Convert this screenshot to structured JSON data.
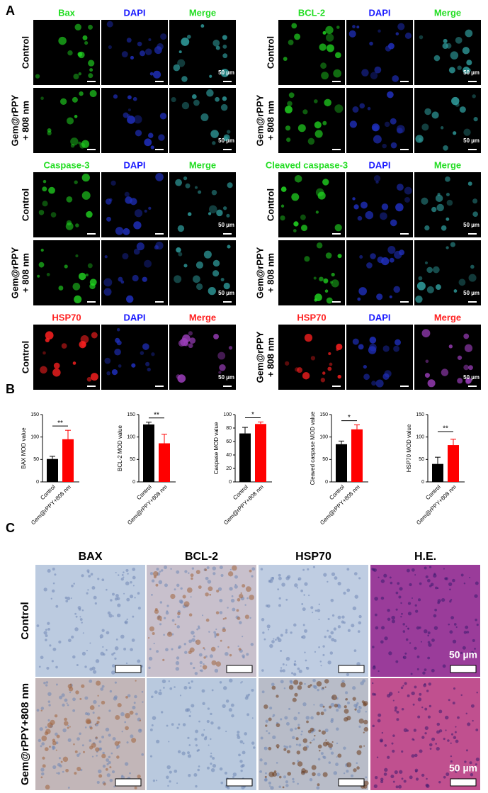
{
  "panel_labels": [
    "A",
    "B",
    "C"
  ],
  "panel_a": {
    "scale": "50 µm",
    "groups": [
      {
        "headers": [
          "Bax",
          "DAPI",
          "Merge"
        ],
        "rows": [
          [
            "Control"
          ],
          [
            "Gem@rPPY",
            "+ 808 nm"
          ]
        ]
      },
      {
        "headers": [
          "BCL-2",
          "DAPI",
          "Merge"
        ],
        "rows": [
          [
            "Control"
          ],
          [
            "Gem@rPPY",
            "+ 808 nm"
          ]
        ]
      },
      {
        "headers": [
          "Caspase-3",
          "DAPI",
          "Merge"
        ],
        "rows": [
          [
            "Control"
          ],
          [
            "Gem@rPPY",
            "+ 808 nm"
          ]
        ]
      },
      {
        "headers": [
          "Cleaved caspase-3",
          "DAPI",
          "Merge"
        ],
        "rows": [
          [
            "Control"
          ],
          [
            "Gem@rPPY",
            "+ 808 nm"
          ]
        ]
      },
      {
        "headers": [
          "HSP70",
          "DAPI",
          "Merge"
        ],
        "rows": [
          [
            "Control"
          ]
        ]
      },
      {
        "headers": [
          "HSP70",
          "DAPI",
          "Merge"
        ],
        "rows": [
          [
            "Gem@rPPY",
            "+ 808 nm"
          ]
        ]
      }
    ]
  },
  "chart_data": [
    {
      "type": "bar",
      "ylabel": "BAX MOD value",
      "categories": [
        "Control",
        "Gem@rPPY+808 nm"
      ],
      "values": [
        51,
        95
      ],
      "errors": [
        6,
        20
      ],
      "colors": [
        "#000000",
        "#ff0000"
      ],
      "ylim": [
        0,
        150
      ],
      "yticks": [
        0,
        50,
        100,
        150
      ],
      "significance": "**"
    },
    {
      "type": "bar",
      "ylabel": "BCL-2 MOD value",
      "categories": [
        "Control",
        "Gem@rPPY+808 nm"
      ],
      "values": [
        128,
        86
      ],
      "errors": [
        5,
        20
      ],
      "colors": [
        "#000000",
        "#ff0000"
      ],
      "ylim": [
        0,
        150
      ],
      "yticks": [
        0,
        50,
        100,
        150
      ],
      "significance": "**"
    },
    {
      "type": "bar",
      "ylabel": "Caspase MOD value",
      "categories": [
        "Control",
        "Gem@rPPY+808 nm"
      ],
      "values": [
        72,
        86
      ],
      "errors": [
        9,
        3
      ],
      "colors": [
        "#000000",
        "#ff0000"
      ],
      "ylim": [
        0,
        100
      ],
      "yticks": [
        0,
        20,
        40,
        60,
        80,
        100
      ],
      "significance": "*"
    },
    {
      "type": "bar",
      "ylabel": "Cleaved caspase MOD value",
      "categories": [
        "Control",
        "Gem@rPPY+808 nm"
      ],
      "values": [
        84,
        117
      ],
      "errors": [
        7,
        10
      ],
      "colors": [
        "#000000",
        "#ff0000"
      ],
      "ylim": [
        0,
        150
      ],
      "yticks": [
        0,
        50,
        100,
        150
      ],
      "significance": "*"
    },
    {
      "type": "bar",
      "ylabel": "HSP70 MOD value",
      "categories": [
        "Control",
        "Gem@rPPY+808 nm"
      ],
      "values": [
        40,
        82
      ],
      "errors": [
        15,
        13
      ],
      "colors": [
        "#000000",
        "#ff0000"
      ],
      "ylim": [
        0,
        150
      ],
      "yticks": [
        0,
        50,
        100,
        150
      ],
      "significance": "**"
    }
  ],
  "panel_c": {
    "columns": [
      "BAX",
      "BCL-2",
      "HSP70",
      "H.E."
    ],
    "rows": [
      "Control",
      "Gem@rPPY+808 nm"
    ],
    "scale": "50 µm"
  }
}
